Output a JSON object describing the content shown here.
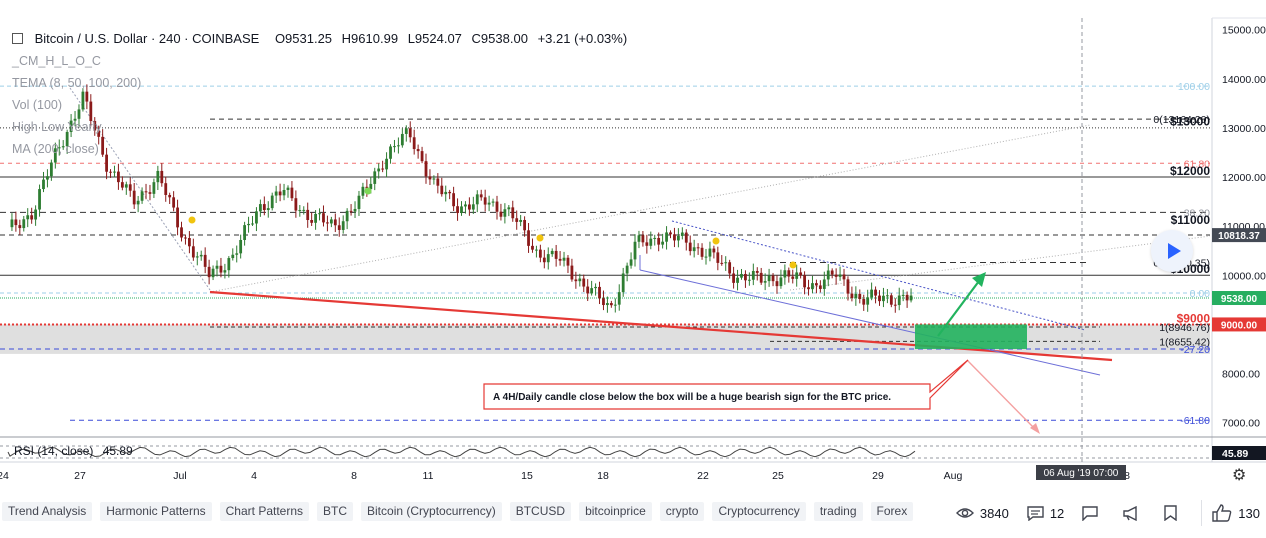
{
  "header": {
    "symbol": "Bitcoin / U.S. Dollar · 240 · COINBASE",
    "open": "O9531.25",
    "high": "H9610.99",
    "low": "L9524.07",
    "close": "C9538.00",
    "change": "+3.21 (+0.03%)",
    "indicators": [
      "_CM_H_L_O_C",
      "TEMA (8, 50, 100, 200)",
      "Vol (100)",
      "High Low Yearly",
      "MA (200, close)"
    ]
  },
  "rsi": {
    "label": "RSI (14, close)",
    "value": "45.89",
    "badge": "45.89"
  },
  "annotation": "A 4H/Daily candle close below the box will be a huge bearish sign for the BTC price.",
  "price_tags": [
    {
      "text": "9538.00",
      "price": 9538,
      "color": "#27ae60"
    },
    {
      "text": "9000.00",
      "price": 9000,
      "color": "#e53935"
    },
    {
      "text": "10818.37",
      "price": 10818.37,
      "color": "#444a55"
    }
  ],
  "level_labels": [
    {
      "text": "100.00",
      "price": 13850,
      "color": "#9ecfe8"
    },
    {
      "text": "0(13164.20)",
      "price": 13180,
      "color": "#131722"
    },
    {
      "text": "$13000",
      "price": 13130,
      "color": "#131722",
      "bold": true
    },
    {
      "text": "61.80",
      "price": 12280,
      "color": "#f07070"
    },
    {
      "text": "$12000",
      "price": 12120,
      "color": "#131722",
      "bold": true
    },
    {
      "text": "38.20",
      "price": 11280,
      "color": "#9598a1"
    },
    {
      "text": "$11000",
      "price": 11130,
      "color": "#131722",
      "bold": true
    },
    {
      "text": "0(10260.35)",
      "price": 10260,
      "color": "#131722"
    },
    {
      "text": "$10000",
      "price": 10130,
      "color": "#131722",
      "bold": true
    },
    {
      "text": "0.00",
      "price": 9640,
      "color": "#9ecfe8"
    },
    {
      "text": "$9000",
      "price": 9120,
      "color": "#e53935",
      "bold": true
    },
    {
      "text": "1(8946.76)",
      "price": 8946.76,
      "color": "#131722"
    },
    {
      "text": "1(8655.42)",
      "price": 8655.42,
      "color": "#131722"
    },
    {
      "text": "-27.20",
      "price": 8500,
      "color": "#3b4bd8"
    },
    {
      "text": "-61.80",
      "price": 7050,
      "color": "#3b4bd8"
    }
  ],
  "time_badge": "06 Aug '19   07:00",
  "tags": [
    "Trend Analysis",
    "Harmonic Patterns",
    "Chart Patterns",
    "BTC",
    "Bitcoin (Cryptocurrency)",
    "BTCUSD",
    "bitcoinprice",
    "crypto",
    "Cryptocurrency",
    "trading",
    "Forex"
  ],
  "stats": {
    "views": "3840",
    "comments": "12",
    "likes": "130"
  },
  "icons": [
    "eye-icon",
    "comment-icon",
    "chat-icon",
    "megaphone-icon",
    "bookmark-icon",
    "thumbs-up-icon",
    "gear-icon",
    "play-icon"
  ],
  "chart_data": {
    "type": "line",
    "title": "Bitcoin / U.S. Dollar · 240 · COINBASE",
    "ylim": [
      6500,
      15200
    ],
    "y_ticks": [
      7000,
      8000,
      9000,
      10000,
      11000,
      12000,
      13000,
      14000,
      15000
    ],
    "y_tick_labels": [
      "7000.00",
      "8000.00",
      "9000.00",
      "10000.00",
      "11000.00",
      "12000.00",
      "13000.00",
      "14000.00",
      "15000.00"
    ],
    "x_tick_labels": [
      "24",
      "27",
      "Jul",
      "4",
      "8",
      "11",
      "15",
      "18",
      "22",
      "25",
      "29",
      "Aug",
      "8"
    ],
    "series": [
      {
        "x": [
          "Jun 24",
          "Jun 25",
          "Jun 26",
          "Jun 27",
          "Jun 28",
          "Jun 29",
          "Jun 30",
          "Jul 1",
          "Jul 2",
          "Jul 3",
          "Jul 4",
          "Jul 5",
          "Jul 6",
          "Jul 7",
          "Jul 8",
          "Jul 9",
          "Jul 10",
          "Jul 11",
          "Jul 12",
          "Jul 13",
          "Jul 14",
          "Jul 15",
          "Jul 16",
          "Jul 17",
          "Jul 18",
          "Jul 19",
          "Jul 20",
          "Jul 21",
          "Jul 22",
          "Jul 23",
          "Jul 24",
          "Jul 25",
          "Jul 26",
          "Jul 27",
          "Jul 28",
          "Jul 29",
          "Jul 30"
        ],
        "values": [
          10900,
          11300,
          12600,
          13600,
          12200,
          11500,
          12000,
          10800,
          10000,
          10400,
          11400,
          11700,
          11200,
          11000,
          11500,
          12400,
          12900,
          11800,
          11400,
          11500,
          11300,
          10500,
          10300,
          9800,
          9300,
          10600,
          10800,
          10700,
          10400,
          10000,
          9900,
          10000,
          9800,
          10000,
          9500,
          9550,
          9538
        ]
      }
    ],
    "levels": [
      {
        "label": "$13000",
        "value": 13000
      },
      {
        "label": "$12000",
        "value": 12000
      },
      {
        "label": "$11000",
        "value": 11000
      },
      {
        "label": "$10000",
        "value": 10000
      },
      {
        "label": "$9000",
        "value": 9000
      },
      {
        "label": "0(13164.20)",
        "value": 13164.2
      },
      {
        "label": "0(10260.35)",
        "value": 10260.35
      },
      {
        "label": "1(8946.76)",
        "value": 8946.76
      },
      {
        "label": "1(8655.42)",
        "value": 8655.42
      }
    ],
    "rsi": {
      "label": "RSI (14, close)",
      "value": 45.89
    },
    "grid": false
  }
}
